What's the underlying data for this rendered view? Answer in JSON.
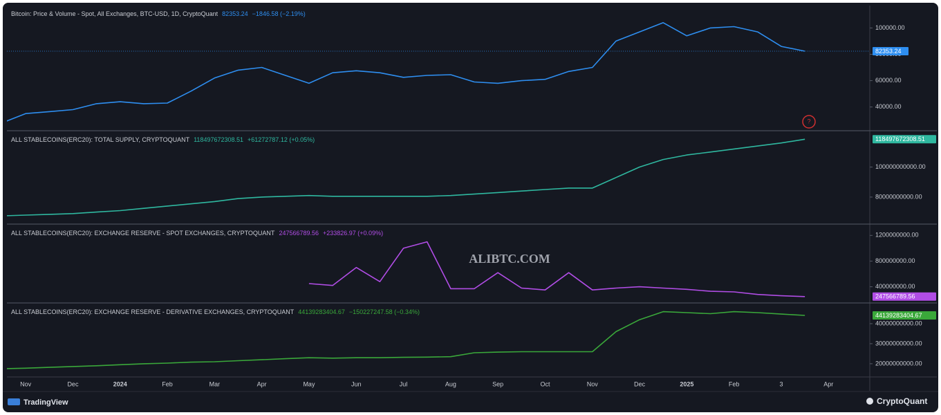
{
  "chart_data": [
    {
      "type": "line",
      "title": "Bitcoin: Price & Volume - Spot, All Exchanges, BTC-USD, 1D, CryptoQuant",
      "change": "−1846.58 (−2.19%)",
      "color": "#2e8ef0",
      "values": [
        28000,
        35000,
        36500,
        38000,
        42500,
        44000,
        42500,
        43000,
        52000,
        62000,
        68000,
        70000,
        64000,
        58000,
        66000,
        67500,
        66000,
        62500,
        64000,
        64500,
        59000,
        58000,
        60000,
        61000,
        67000,
        70000,
        90000,
        97000,
        104000,
        94000,
        100000,
        101000,
        97000,
        86000,
        82353.24,
        null,
        null
      ],
      "ylim": [
        22000,
        117000
      ],
      "yticks": [
        {
          "value": 40000,
          "label": "40000.00"
        },
        {
          "value": 60000,
          "label": "60000.00"
        },
        {
          "value": 80000,
          "label": "80000.00"
        },
        {
          "value": 100000,
          "label": "100000.00"
        }
      ]
    },
    {
      "type": "line",
      "title": "ALL STABLECOINS(ERC20): TOTAL SUPPLY, CRYPTOQUANT",
      "change": "+61272787.12 (+0.05%)",
      "color": "#2fb8a0",
      "values": [
        67500000000,
        68000000000,
        68500000000,
        69000000000,
        70000000000,
        71000000000,
        72500000000,
        74000000000,
        75500000000,
        77000000000,
        79000000000,
        80000000000,
        80500000000,
        81000000000,
        80500000000,
        80500000000,
        80500000000,
        80500000000,
        80500000000,
        81000000000,
        82000000000,
        83000000000,
        84000000000,
        85000000000,
        86000000000,
        86000000000,
        93000000000,
        100000000000,
        105000000000,
        108000000000,
        110000000000,
        112000000000,
        114000000000,
        116000000000,
        118497672308.51,
        null,
        null
      ],
      "ylim": [
        62000000000,
        123700000000
      ],
      "yticks": [
        {
          "value": 80000000000,
          "label": "80000000000.00"
        },
        {
          "value": 100000000000,
          "label": "100000000000.00"
        }
      ]
    },
    {
      "type": "line",
      "title": "ALL STABLECOINS(ERC20): EXCHANGE RESERVE - SPOT EXCHANGES, CRYPTOQUANT",
      "change": "+233826.97 (+0.09%)",
      "color": "#b14de6",
      "values": [
        null,
        null,
        null,
        null,
        null,
        null,
        null,
        null,
        null,
        null,
        null,
        null,
        null,
        450000000,
        420000000,
        700000000,
        480000000,
        1000000000,
        1100000000,
        370000000,
        370000000,
        620000000,
        380000000,
        350000000,
        620000000,
        350000000,
        380000000,
        400000000,
        380000000,
        360000000,
        330000000,
        320000000,
        280000000,
        260000000,
        247566789.56,
        null,
        null
      ],
      "ylim": [
        148000000,
        1365000000
      ],
      "yticks": [
        {
          "value": 400000000,
          "label": "400000000.00"
        },
        {
          "value": 800000000,
          "label": "800000000.00"
        },
        {
          "value": 1200000000,
          "label": "1200000000.00"
        }
      ]
    },
    {
      "type": "line",
      "title": "ALL STABLECOINS(ERC20): EXCHANGE RESERVE - DERIVATIVE EXCHANGES, CRYPTOQUANT",
      "change": "−150227247.58 (−0.34%)",
      "color": "#3aa83a",
      "categories": [
        null,
        "Nov",
        null,
        "Dec",
        null,
        "2024",
        null,
        "Feb",
        null,
        "Mar",
        null,
        "Apr",
        null,
        "May",
        null,
        "Jun",
        null,
        "Jul",
        null,
        "Aug",
        null,
        "Sep",
        null,
        "Oct",
        null,
        "Nov",
        null,
        "Dec",
        null,
        "2025",
        null,
        "Feb",
        null,
        "3",
        null,
        "Apr",
        null
      ],
      "values": [
        17500000000,
        17800000000,
        18200000000,
        18600000000,
        19000000000,
        19500000000,
        20000000000,
        20300000000,
        20800000000,
        21000000000,
        21500000000,
        22000000000,
        22500000000,
        23000000000,
        22800000000,
        23000000000,
        23000000000,
        23200000000,
        23300000000,
        23500000000,
        25500000000,
        25800000000,
        26000000000,
        26000000000,
        26000000000,
        26000000000,
        36000000000,
        42000000000,
        46000000000,
        45500000000,
        45000000000,
        46000000000,
        45500000000,
        44800000000,
        44139283404.67,
        null,
        null
      ],
      "ylim": [
        13400000000,
        50000000000
      ],
      "yticks": [
        {
          "value": 20000000000,
          "label": "20000000000.00"
        },
        {
          "value": 30000000000,
          "label": "30000000000.00"
        },
        {
          "value": 40000000000,
          "label": "40000000000.00"
        }
      ]
    }
  ],
  "branding": {
    "left": "TradingView",
    "right": "CryptoQuant",
    "watermark": "ALIBTC.COM"
  }
}
